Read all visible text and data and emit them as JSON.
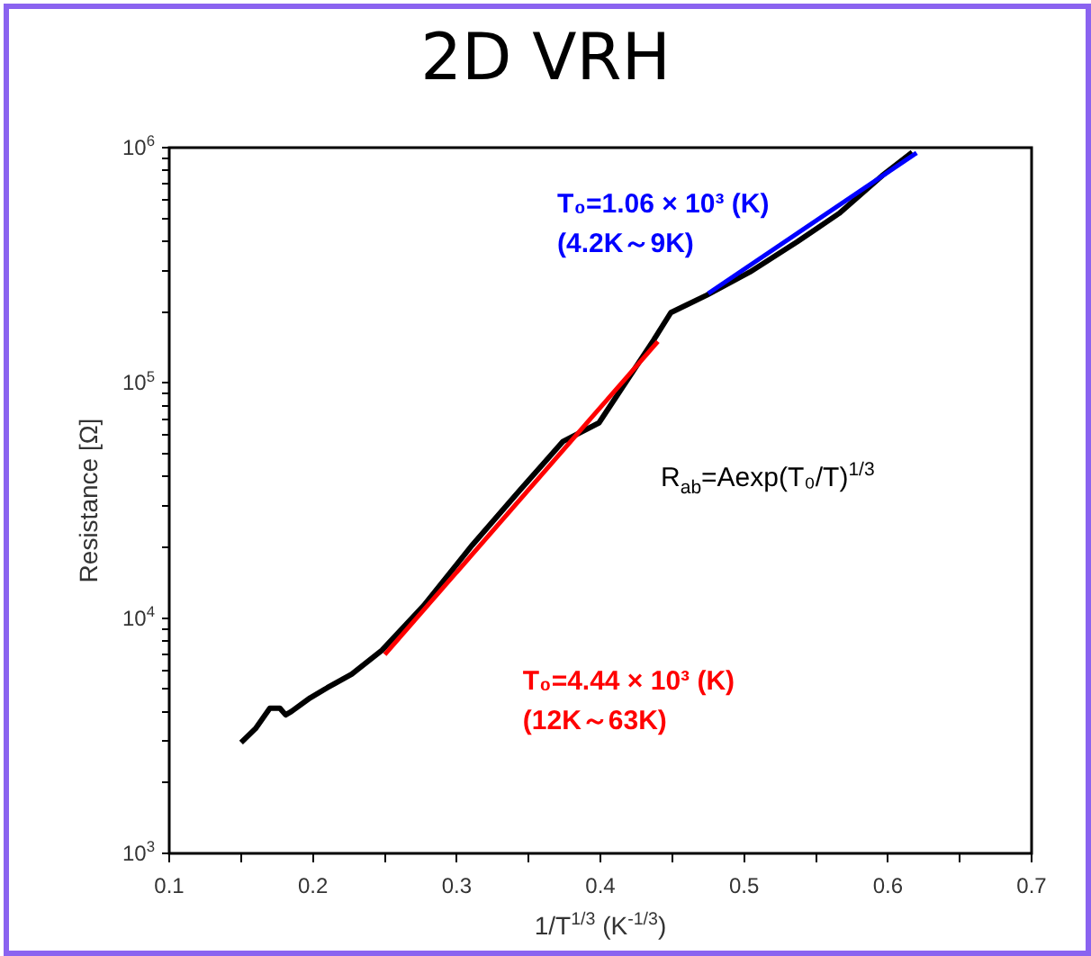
{
  "chart_data": {
    "type": "line",
    "title": "2D VRH",
    "xlabel": "1/T$^{1/3}$ (K$^{-1/3}$)",
    "ylabel": "Resistance [Ω]",
    "log": "y",
    "xlim": [
      0.1,
      0.7
    ],
    "ylim": [
      1000,
      1000000
    ],
    "xticks": [
      0.1,
      {
        "value": 0.15,
        "label": null
      },
      0.2,
      {
        "value": 0.25,
        "label": null
      },
      0.3,
      {
        "value": 0.35,
        "label": null
      },
      0.4,
      {
        "value": 0.45,
        "label": null
      },
      0.5,
      {
        "value": 0.55,
        "label": null
      },
      0.6,
      {
        "value": 0.65,
        "label": null
      },
      0.7
    ],
    "yticks": [
      {
        "value": 1000,
        "label": "10$^{3}$"
      },
      {
        "value": 2000,
        "label": null
      },
      {
        "value": 3000,
        "label": null
      },
      {
        "value": 4000,
        "label": null
      },
      {
        "value": 5000,
        "label": null
      },
      {
        "value": 6000,
        "label": null
      },
      {
        "value": 7000,
        "label": null
      },
      {
        "value": 8000,
        "label": null
      },
      {
        "value": 9000,
        "label": null
      },
      {
        "value": 10000,
        "label": "10$^{4}$"
      },
      {
        "value": 20000,
        "label": null
      },
      {
        "value": 30000,
        "label": null
      },
      {
        "value": 40000,
        "label": null
      },
      {
        "value": 50000,
        "label": null
      },
      {
        "value": 60000,
        "label": null
      },
      {
        "value": 70000,
        "label": null
      },
      {
        "value": 80000,
        "label": null
      },
      {
        "value": 90000,
        "label": null
      },
      {
        "value": 100000,
        "label": "10$^{5}$"
      },
      {
        "value": 200000,
        "label": null
      },
      {
        "value": 300000,
        "label": null
      },
      {
        "value": 400000,
        "label": null
      },
      {
        "value": 500000,
        "label": null
      },
      {
        "value": 600000,
        "label": null
      },
      {
        "value": 700000,
        "label": null
      },
      {
        "value": 800000,
        "label": null
      },
      {
        "value": 900000,
        "label": null
      },
      {
        "value": 1000000,
        "label": "10$^{6}$"
      }
    ],
    "grid": false,
    "legend": false,
    "marker": "none",
    "series": [
      {
        "color": "#000000",
        "x": [
          0.15,
          0.16,
          0.17,
          0.177,
          0.181,
          0.185,
          0.198,
          0.21,
          0.227,
          0.248,
          0.277,
          0.311,
          0.344,
          0.374,
          0.399,
          0.437,
          0.449,
          0.474,
          0.504,
          0.537,
          0.566,
          0.596,
          0.617
        ],
        "values": [
          2960,
          3390,
          4140,
          4140,
          3880,
          4010,
          4580,
          5060,
          5780,
          7300,
          11300,
          20500,
          35000,
          56400,
          67600,
          152000,
          199000,
          236000,
          296000,
          398000,
          525000,
          760000,
          955000
        ]
      },
      {
        "name": "T₀=4.44 × 10³ (K)\n(12K～63K)",
        "color": "#ff0000",
        "x": [
          0.25,
          0.44
        ],
        "values": [
          7000,
          150000
        ]
      },
      {
        "name": "T₀=1.06 × 10³ (K)\n(4.2K～9K)",
        "color": "#0000ff",
        "x": [
          0.475,
          0.62
        ],
        "values": [
          240000,
          950000
        ]
      }
    ],
    "annotations": [
      "R$_{ab}$=Aexp(T₀/T)$^{1/3}$"
    ]
  }
}
